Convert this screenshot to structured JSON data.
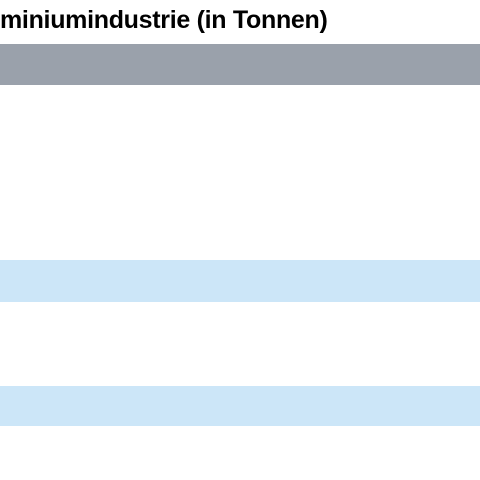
{
  "header": {
    "title": "miniumindustrie (in Tonnen)"
  }
}
